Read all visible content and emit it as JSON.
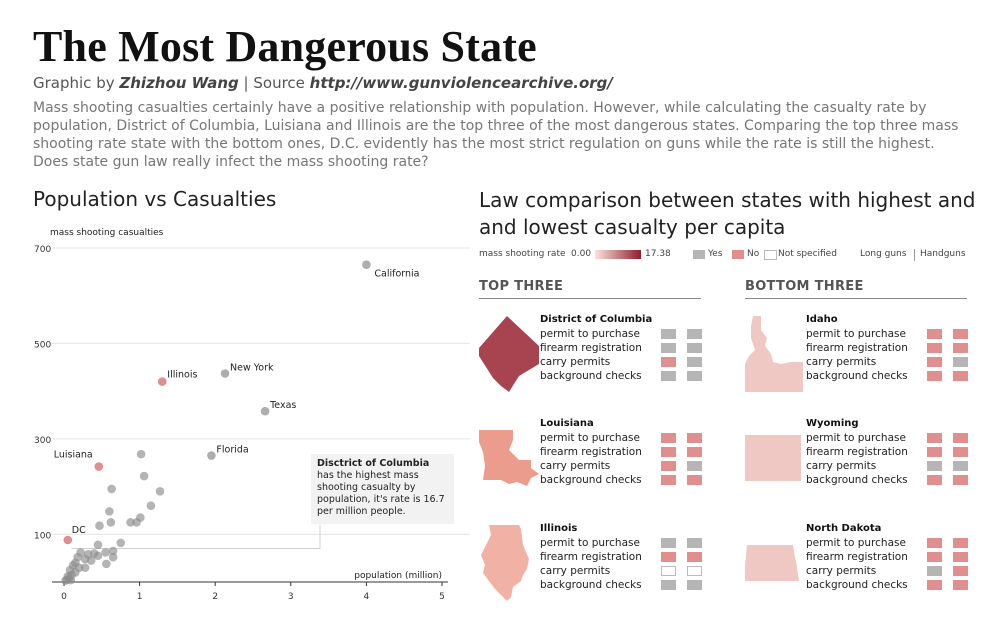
{
  "header": {
    "title": "The Most Dangerous State",
    "byline_prefix": "Graphic by",
    "author": "Zhizhou Wang",
    "source_prefix": "| Source",
    "source": "http://www.gunviolencearchive.org/",
    "intro": "Mass shooting casualties certainly have a positive relationship with population. However, while calculating the casualty rate by population, District of Columbia, Luisiana and Illinois are the top three of the most dangerous states.  Comparing the top three mass shooting rate state with the bottom ones, D.C. evidently has the most strict regulation on guns while the rate is still the highest. Does state gun law really infect the mass shooting rate?"
  },
  "scatter": {
    "section_title": "Population vs Casualties",
    "callout_bold": "Disctrict of Columbia",
    "callout_text": " has the highest mass shooting casualty by population, it's rate is 16.7 per million people."
  },
  "chart_data": {
    "type": "scatter",
    "xlabel": "population (million)",
    "ylabel": "mass shooting casualties",
    "xlim": [
      0,
      5
    ],
    "ylim": [
      0,
      700
    ],
    "xticks": [
      0,
      1,
      2,
      3,
      4,
      5
    ],
    "yticks": [
      100,
      300,
      500,
      700
    ],
    "highlight_color": "#e08e8e",
    "base_color": "#8c8c8c",
    "labeled_points": [
      {
        "label": "California",
        "x": 4.0,
        "y": 665,
        "highlight": false
      },
      {
        "label": "New York",
        "x": 2.13,
        "y": 437,
        "highlight": false
      },
      {
        "label": "Illinois",
        "x": 1.3,
        "y": 420,
        "highlight": true
      },
      {
        "label": "Texas",
        "x": 2.66,
        "y": 358,
        "highlight": false
      },
      {
        "label": "Florida",
        "x": 1.95,
        "y": 265,
        "highlight": false
      },
      {
        "label": "Luisiana",
        "x": 0.46,
        "y": 242,
        "highlight": true
      },
      {
        "label": "DC",
        "x": 0.05,
        "y": 88,
        "highlight": true
      }
    ],
    "other_points": [
      [
        1.02,
        268
      ],
      [
        1.06,
        222
      ],
      [
        0.63,
        195
      ],
      [
        1.15,
        160
      ],
      [
        1.27,
        190
      ],
      [
        0.6,
        148
      ],
      [
        0.88,
        125
      ],
      [
        0.96,
        125
      ],
      [
        0.47,
        118
      ],
      [
        0.62,
        125
      ],
      [
        1.01,
        135
      ],
      [
        0.75,
        82
      ],
      [
        0.65,
        65
      ],
      [
        0.65,
        52
      ],
      [
        0.56,
        38
      ],
      [
        0.45,
        78
      ],
      [
        0.45,
        55
      ],
      [
        0.55,
        62
      ],
      [
        0.4,
        60
      ],
      [
        0.32,
        58
      ],
      [
        0.28,
        48
      ],
      [
        0.22,
        62
      ],
      [
        0.18,
        52
      ],
      [
        0.15,
        40
      ],
      [
        0.12,
        35
      ],
      [
        0.2,
        30
      ],
      [
        0.28,
        30
      ],
      [
        0.36,
        45
      ],
      [
        0.08,
        25
      ],
      [
        0.1,
        15
      ],
      [
        0.05,
        12
      ],
      [
        0.04,
        5
      ],
      [
        0.07,
        8
      ],
      [
        0.02,
        3
      ],
      [
        0.09,
        4
      ],
      [
        0.15,
        20
      ]
    ]
  },
  "law": {
    "section_title": "Law comparison between states with highest and and lowest casualty per capita",
    "legend": {
      "rate_label": "mass shooting rate",
      "rate_min": "0.00",
      "rate_max": "17.38",
      "gradient_low": "#fbe3dd",
      "gradient_high": "#8e1f2b",
      "yes": "Yes",
      "no": "No",
      "not_specified": "Not specified",
      "long_guns": "Long guns",
      "handguns": "Handguns"
    },
    "law_labels": [
      "permit to purchase",
      "firearm registration",
      "carry permits",
      "background checks"
    ],
    "top_header": "TOP THREE",
    "bottom_header": "BOTTOM THREE",
    "colors": {
      "yes": "#b5b5b5",
      "no": "#e08e8e"
    },
    "top": [
      {
        "name": "District of Columbia",
        "shape": "dc",
        "fill": "#a8444f",
        "laws": [
          [
            "yes",
            "yes"
          ],
          [
            "yes",
            "yes"
          ],
          [
            "no",
            "yes"
          ],
          [
            "yes",
            "yes"
          ]
        ]
      },
      {
        "name": "Louisiana",
        "shape": "la",
        "fill": "#eb9c8d",
        "laws": [
          [
            "no",
            "no"
          ],
          [
            "no",
            "no"
          ],
          [
            "no",
            "yes"
          ],
          [
            "no",
            "no"
          ]
        ]
      },
      {
        "name": "Illinois",
        "shape": "il",
        "fill": "#f2b1a5",
        "laws": [
          [
            "yes",
            "yes"
          ],
          [
            "no",
            "no"
          ],
          [
            "ns",
            "ns"
          ],
          [
            "yes",
            "yes"
          ]
        ]
      }
    ],
    "bottom": [
      {
        "name": "Idaho",
        "shape": "id",
        "fill": "#f0c8c3",
        "laws": [
          [
            "no",
            "no"
          ],
          [
            "no",
            "no"
          ],
          [
            "no",
            "yes"
          ],
          [
            "no",
            "no"
          ]
        ]
      },
      {
        "name": "Wyoming",
        "shape": "wy",
        "fill": "#f0c8c3",
        "laws": [
          [
            "no",
            "no"
          ],
          [
            "no",
            "no"
          ],
          [
            "yes",
            "yes"
          ],
          [
            "no",
            "no"
          ]
        ]
      },
      {
        "name": "North Dakota",
        "shape": "nd",
        "fill": "#f0c8c3",
        "laws": [
          [
            "no",
            "no"
          ],
          [
            "no",
            "no"
          ],
          [
            "yes",
            "no"
          ],
          [
            "no",
            "no"
          ]
        ]
      }
    ]
  }
}
